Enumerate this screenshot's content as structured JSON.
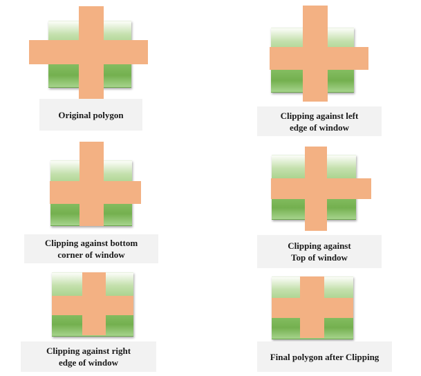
{
  "panels": {
    "original": {
      "caption": [
        "Original polygon"
      ]
    },
    "left": {
      "caption": [
        "Clipping against left",
        "edge of window"
      ]
    },
    "bottom": {
      "caption": [
        "Clipping against bottom",
        "corner of window"
      ]
    },
    "top": {
      "caption": [
        "Clipping against",
        "Top of window"
      ]
    },
    "right": {
      "caption": [
        "Clipping against right",
        "edge of window"
      ]
    },
    "final": {
      "caption": [
        "Final polygon after Clipping"
      ]
    }
  },
  "colors": {
    "polygon": "#f3b183",
    "window_top": "#fbfdf8",
    "window_bottom": "#74b04f",
    "caption_bg": "#f2f2f2"
  }
}
